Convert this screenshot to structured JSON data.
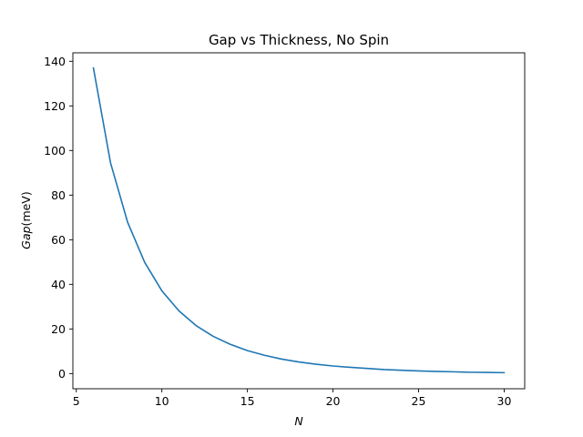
{
  "chart_data": {
    "type": "line",
    "title": "Gap vs Thickness, No Spin",
    "xlabel": "N",
    "ylabel_italic": "Gap",
    "ylabel_unit": "(meV)",
    "xlim": [
      4.8,
      31.2
    ],
    "ylim": [
      -6.8,
      143.8
    ],
    "xticks": [
      5,
      10,
      15,
      20,
      25,
      30
    ],
    "yticks": [
      0,
      20,
      40,
      60,
      80,
      100,
      120,
      140
    ],
    "grid": false,
    "series": [
      {
        "color": "#1f77b4",
        "x": [
          6,
          7,
          8,
          9,
          10,
          11,
          12,
          13,
          14,
          15,
          16,
          17,
          18,
          19,
          20,
          21,
          22,
          23,
          24,
          25,
          26,
          27,
          28,
          29,
          30
        ],
        "y": [
          137,
          94.5,
          67.8,
          49.8,
          37.1,
          28.1,
          21.5,
          16.7,
          13.1,
          10.3,
          8.2,
          6.5,
          5.2,
          4.2,
          3.4,
          2.8,
          2.3,
          1.8,
          1.5,
          1.2,
          1.0,
          0.8,
          0.6,
          0.5,
          0.4
        ]
      }
    ]
  }
}
